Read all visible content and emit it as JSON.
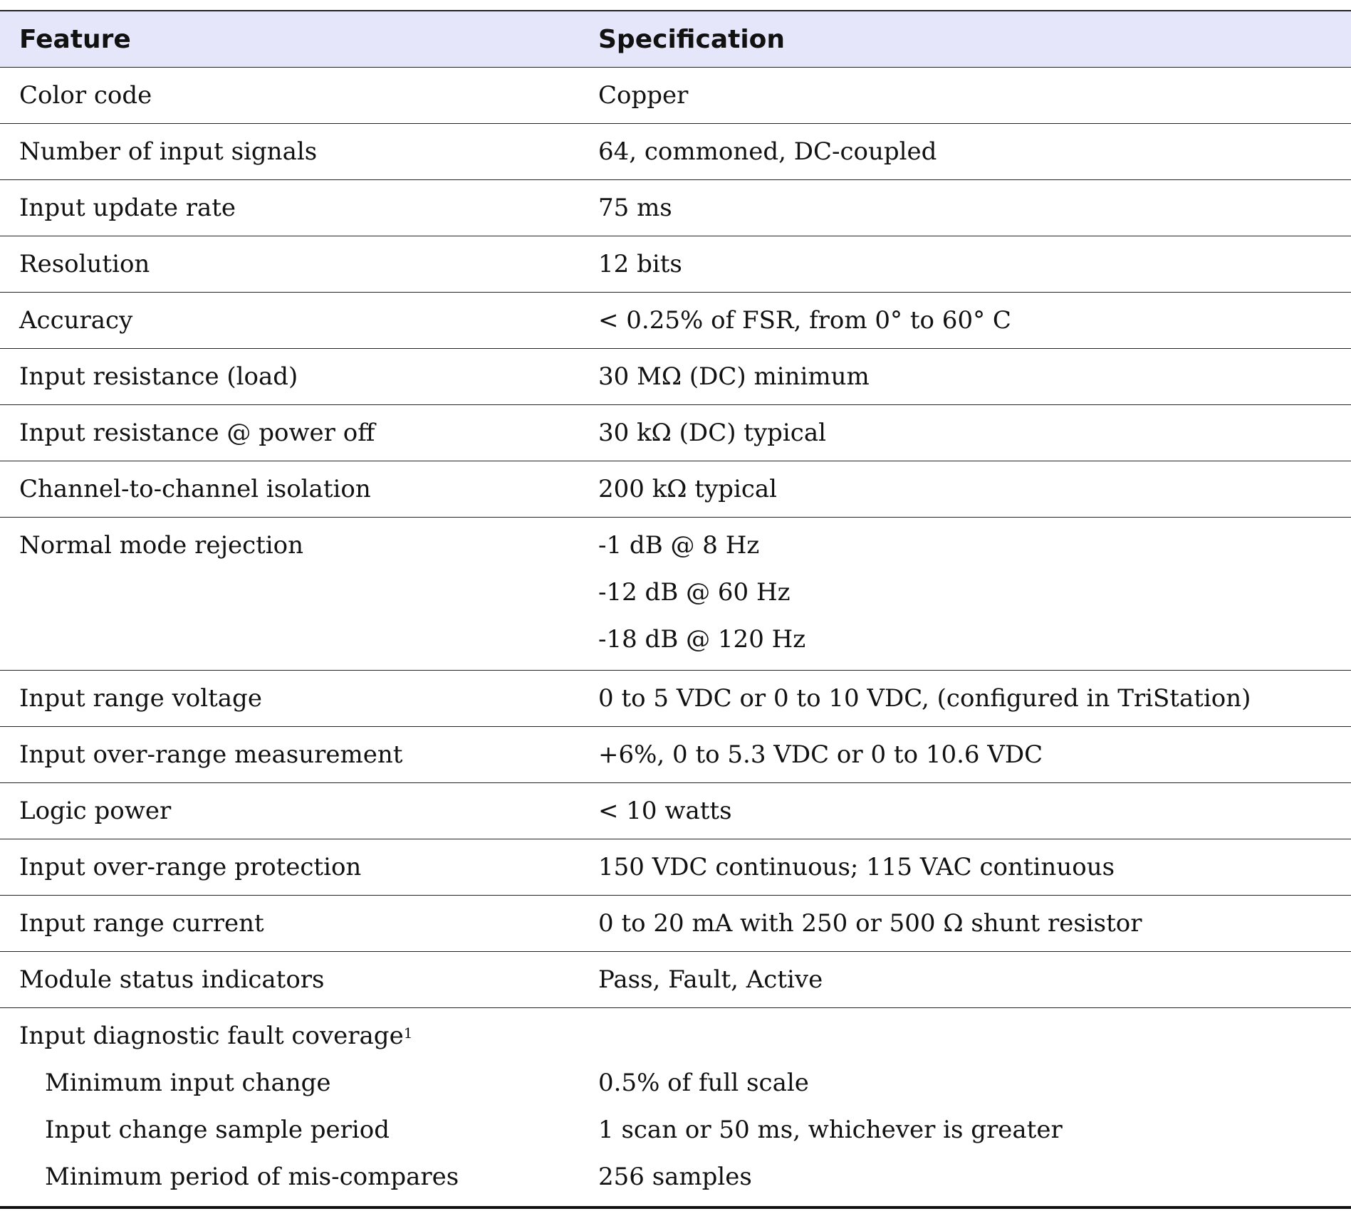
{
  "headers": [
    "Feature",
    "Specification"
  ],
  "rows": [
    {
      "feature": "Color code",
      "spec": [
        "Copper"
      ]
    },
    {
      "feature": "Number of input signals",
      "spec": [
        "64, commoned, DC-coupled"
      ]
    },
    {
      "feature": "Input update rate",
      "spec": [
        "75 ms"
      ]
    },
    {
      "feature": "Resolution",
      "spec": [
        "12 bits"
      ]
    },
    {
      "feature": "Accuracy",
      "spec": [
        "< 0.25% of FSR, from 0° to 60° C"
      ]
    },
    {
      "feature": "Input resistance (load)",
      "spec": [
        "30 MΩ (DC) minimum"
      ]
    },
    {
      "feature": "Input resistance @ power off",
      "spec": [
        "30 kΩ (DC) typical"
      ]
    },
    {
      "feature": "Channel-to-channel isolation",
      "spec": [
        "200 kΩ typical"
      ]
    },
    {
      "feature": "Normal mode rejection",
      "spec": [
        "-1 dB @ 8 Hz",
        "-12 dB @ 60 Hz",
        "-18 dB @ 120 Hz"
      ]
    },
    {
      "feature": "Input range voltage",
      "spec": [
        "0 to 5 VDC or 0 to 10 VDC, (configured in TriStation)"
      ]
    },
    {
      "feature": "Input over-range measurement",
      "spec": [
        "+6%, 0 to 5.3 VDC or 0 to 10.6 VDC"
      ]
    },
    {
      "feature": "Logic power",
      "spec": [
        "< 10 watts"
      ]
    },
    {
      "feature": "Input over-range protection",
      "spec": [
        "150 VDC continuous; 115 VAC continuous"
      ]
    },
    {
      "feature": "Input range current",
      "spec": [
        "0 to 20 mA with 250 or 500 Ω shunt resistor"
      ]
    },
    {
      "feature": "Module status indicators",
      "spec": [
        "Pass, Fault, Active"
      ]
    }
  ],
  "diagnostic": {
    "feature": "Input diagnostic fault coverage",
    "footnote": "1",
    "items": [
      {
        "feature": "Minimum input change",
        "spec": "0.5% of full scale"
      },
      {
        "feature": "Input change sample period",
        "spec": "1 scan or 50 ms, whichever is greater"
      },
      {
        "feature": "Minimum period of mis-compares",
        "spec": "256 samples"
      }
    ]
  },
  "colors": {
    "header_bg": "#e6e6fa"
  }
}
